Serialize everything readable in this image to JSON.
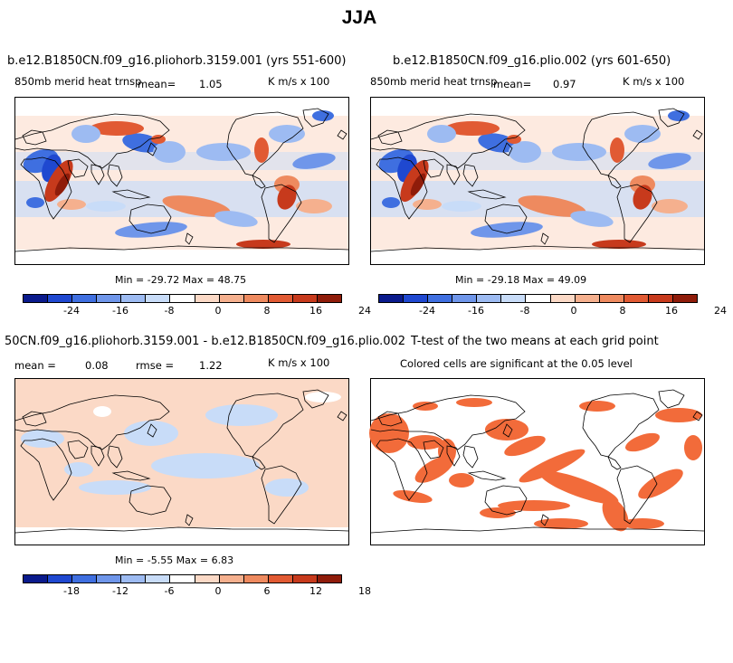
{
  "title": "JJA",
  "panels": [
    {
      "id": "a",
      "header": "b.e12.B1850CN.f09_g16.pliohorb.3159.001 (yrs 551-600)",
      "left_label": "850mb merid heat trnsp",
      "stat_label": "mean=",
      "stat_value": "1.05",
      "units": "K m/s x 100",
      "minmax": "Min = -29.72 Max =  48.75",
      "colorbar_ticks": [
        "-24",
        "-16",
        "-8",
        "0",
        "8",
        "16",
        "24"
      ]
    },
    {
      "id": "b",
      "header": "b.e12.B1850CN.f09_g16.plio.002 (yrs 601-650)",
      "left_label": "850mb merid heat trnsp",
      "stat_label": "mean=",
      "stat_value": "0.97",
      "units": "K m/s x 100",
      "minmax": "Min = -29.18 Max =  49.09",
      "colorbar_ticks": [
        "-24",
        "-16",
        "-8",
        "0",
        "8",
        "16",
        "24"
      ]
    },
    {
      "id": "c",
      "header": "50CN.f09_g16.pliohorb.3159.001 - b.e12.B1850CN.f09_g16.plio.002",
      "mean_label": "mean =",
      "mean_value": "0.08",
      "rmse_label": "rmse =",
      "rmse_value": "1.22",
      "units": "K m/s x 100",
      "minmax": "Min =  -5.55 Max =   6.83",
      "colorbar_ticks": [
        "-18",
        "-12",
        "-6",
        "0",
        "6",
        "12",
        "18"
      ]
    },
    {
      "id": "d",
      "header": "T-test of the two means at each grid point",
      "sub": "Colored cells are significant at the 0.05 level",
      "sig_color": "#f26b3a"
    }
  ],
  "palette": [
    "#0a1a8c",
    "#1f48d0",
    "#3f6fe0",
    "#6f96ea",
    "#9dbbf2",
    "#c8dcf8",
    "#ffffff",
    "#fbd9c6",
    "#f5b08e",
    "#ee8a5f",
    "#e15a33",
    "#c73a1c",
    "#8f1c0a"
  ],
  "colors": {
    "land_outline": "#000000",
    "ocean_white": "#ffffff"
  }
}
